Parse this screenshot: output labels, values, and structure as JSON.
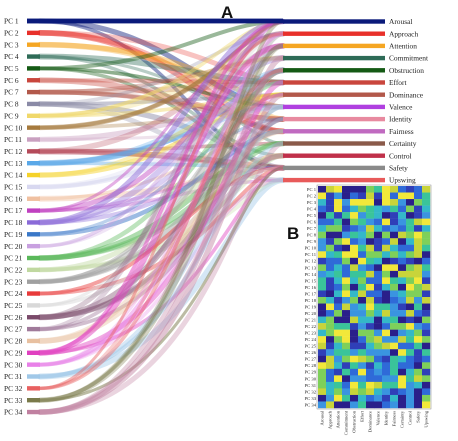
{
  "panels": {
    "a_label": "A",
    "b_label": "B"
  },
  "pcs": [
    "PC 1",
    "PC 2",
    "PC 3",
    "PC 4",
    "PC 5",
    "PC 6",
    "PC 7",
    "PC 8",
    "PC 9",
    "PC 10",
    "PC 11",
    "PC 12",
    "PC 13",
    "PC 14",
    "PC 15",
    "PC 16",
    "PC 17",
    "PC 18",
    "PC 19",
    "PC 20",
    "PC 21",
    "PC 22",
    "PC 23",
    "PC 24",
    "PC 25",
    "PC 26",
    "PC 27",
    "PC 28",
    "PC 29",
    "PC 30",
    "PC 31",
    "PC 32",
    "PC 33",
    "PC 34"
  ],
  "pc_colors": [
    "#0a1a7a",
    "#e8302a",
    "#f5a623",
    "#2e6b57",
    "#145a14",
    "#c9463d",
    "#b2584a",
    "#8a8aa6",
    "#f0d86a",
    "#a67a3d",
    "#c9a0c0",
    "#b54a5a",
    "#5aa8e8",
    "#f5d22a",
    "#d8d8f0",
    "#f0c0a0",
    "#c040c0",
    "#8a6ad8",
    "#3a78c8",
    "#c8a0e0",
    "#5ab85a",
    "#c0d8a0",
    "#a0a0a0",
    "#e83a3a",
    "#d8d8d8",
    "#7a4a6a",
    "#a07a9a",
    "#e8c0a0",
    "#e040c0",
    "#e880e8",
    "#a0c8e8",
    "#e86060",
    "#7a7a4a",
    "#c080a0"
  ],
  "dims": [
    "Arousal",
    "Approach",
    "Attention",
    "Commitment",
    "Obstruction",
    "Effort",
    "Dominance",
    "Valence",
    "Identity",
    "Fairness",
    "Certainty",
    "Control",
    "Safety",
    "Upswing"
  ],
  "dim_colors": [
    "#0a1a7a",
    "#e8302a",
    "#f5a623",
    "#2e6b57",
    "#145a14",
    "#c9463d",
    "#b2584a",
    "#b040e0",
    "#e88aa0",
    "#c06ac0",
    "#8a5a4a",
    "#c0304a",
    "#8a8a8a",
    "#e85a5a"
  ],
  "heatmap_axes": {
    "rows": [
      "PC 1",
      "PC 2",
      "PC 3",
      "PC 4",
      "PC 5",
      "PC 6",
      "PC 7",
      "PC 8",
      "PC 9",
      "PC 10",
      "PC 11",
      "PC 12",
      "PC 13",
      "PC 14",
      "PC 15",
      "PC 16",
      "PC 17",
      "PC 18",
      "PC 19",
      "PC 20",
      "PC 21",
      "PC 22",
      "PC 23",
      "PC 24",
      "PC 25",
      "PC 26",
      "PC 27",
      "PC 28",
      "PC 29",
      "PC 30",
      "PC 31",
      "PC 32",
      "PC 33",
      "PC 34"
    ],
    "cols": [
      "Arousal",
      "Approach",
      "Attention",
      "Commitment",
      "Obstruction",
      "Effort",
      "Dominance",
      "Valence",
      "Identity",
      "Fairness",
      "Certainty",
      "Control",
      "Safety",
      "Upswing"
    ]
  }
}
